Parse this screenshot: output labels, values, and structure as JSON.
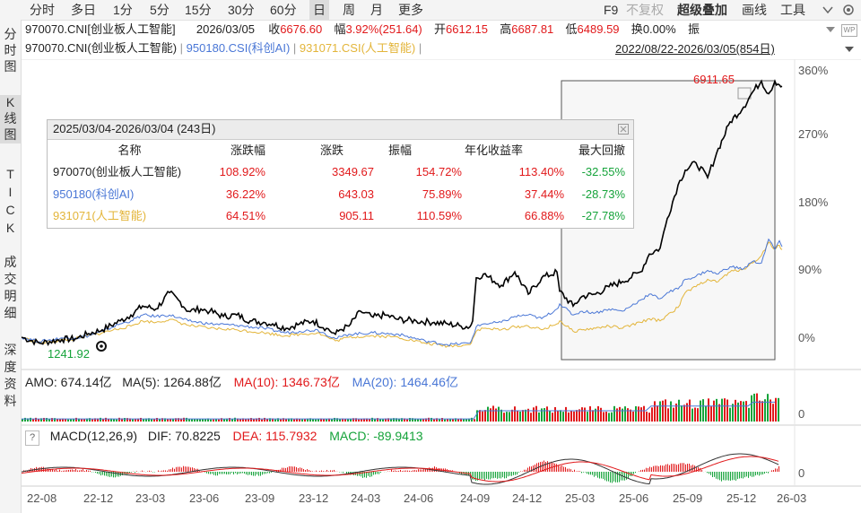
{
  "toolbar": {
    "periods": [
      "分时",
      "多日",
      "1分",
      "5分",
      "15分",
      "30分",
      "60分",
      "日",
      "周",
      "月",
      "更多"
    ],
    "active_period": "日",
    "right": {
      "f9": "F9",
      "fq": "不复权",
      "overlay": "超级叠加",
      "draw": "画线",
      "tools": "工具"
    }
  },
  "leftnav": {
    "items": [
      "分",
      "时",
      "图",
      "K",
      "线",
      "图",
      "T",
      "I",
      "C",
      "K",
      "成",
      "交",
      "明",
      "细",
      "深",
      "度",
      "资",
      "料"
    ]
  },
  "quote": {
    "code": "970070.CNI[创业板人工智能]",
    "date": "2026/03/05",
    "close_label": "收",
    "close": "6676.60",
    "change_label": "幅",
    "change": "3.92%(251.64)",
    "open_label": "开",
    "open": "6612.15",
    "high_label": "高",
    "high": "6687.81",
    "low_label": "低",
    "low": "6489.59",
    "turnover_label": "换",
    "turnover": "0.00%",
    "amp_label": "振"
  },
  "overlay": {
    "main": "970070.CNI(创业板人工智能)",
    "s2": "950180.CSI(科创AI)",
    "s3": "931071.CSI(人工智能)",
    "range": "2022/08/22-2026/03/05(854日)"
  },
  "stats": {
    "title": "2025/03/04-2026/03/04 (243日)",
    "columns": [
      "名称",
      "涨跌幅",
      "涨跌",
      "振幅",
      "年化收益率",
      "最大回撤"
    ],
    "rows": [
      {
        "name": "970070(创业板人工智能)",
        "pct": "108.92%",
        "chg": "3349.67",
        "amp": "154.72%",
        "ann": "113.40%",
        "mdd": "-32.55%"
      },
      {
        "name": "950180(科创AI)",
        "pct": "36.22%",
        "chg": "643.03",
        "amp": "75.89%",
        "ann": "37.44%",
        "mdd": "-28.73%"
      },
      {
        "name": "931071(人工智能)",
        "pct": "64.51%",
        "chg": "905.11",
        "amp": "110.59%",
        "ann": "66.88%",
        "mdd": "-27.78%"
      }
    ]
  },
  "price_chart": {
    "high_label": "6911.65",
    "low_label": "1241.92",
    "y_ticks": [
      "360%",
      "270%",
      "180%",
      "90%",
      "0%"
    ]
  },
  "volume_panel": {
    "amo": "AMO: 674.14亿",
    "ma5": "MA(5): 1264.88亿",
    "ma10": "MA(10): 1346.73亿",
    "ma20": "MA(20): 1464.46亿",
    "zero": "0"
  },
  "macd_panel": {
    "help": "?",
    "label": "MACD(12,26,9)",
    "dif": "DIF: 70.8225",
    "dea": "DEA: 115.7932",
    "macd": "MACD: -89.9413",
    "zero": "0"
  },
  "x_ticks": [
    "22-08",
    "22-12",
    "23-03",
    "23-06",
    "23-09",
    "23-12",
    "24-03",
    "24-06",
    "24-09",
    "24-12",
    "25-03",
    "25-06",
    "25-09",
    "25-12",
    "26-03"
  ],
  "chart_data": {
    "type": "line",
    "x_range": [
      "2022/08/22",
      "2026/03/05"
    ],
    "y_unit": "%",
    "ylim": [
      -5,
      365
    ],
    "y_ticks": [
      0,
      90,
      180,
      270,
      360
    ],
    "series": [
      {
        "name": "970070(创业板人工智能)",
        "color": "#000000",
        "points": [
          [
            0,
            0
          ],
          [
            20,
            -8
          ],
          [
            45,
            -3
          ],
          [
            60,
            -2
          ],
          [
            75,
            5
          ],
          [
            90,
            10
          ],
          [
            110,
            22
          ],
          [
            122,
            30
          ],
          [
            135,
            42
          ],
          [
            150,
            38
          ],
          [
            165,
            60
          ],
          [
            175,
            50
          ],
          [
            186,
            35
          ],
          [
            200,
            38
          ],
          [
            210,
            35
          ],
          [
            225,
            28
          ],
          [
            240,
            30
          ],
          [
            255,
            22
          ],
          [
            270,
            20
          ],
          [
            280,
            18
          ],
          [
            295,
            12
          ],
          [
            310,
            18
          ],
          [
            325,
            22
          ],
          [
            340,
            12
          ],
          [
            350,
            4
          ],
          [
            355,
            10
          ],
          [
            365,
            15
          ],
          [
            378,
            35
          ],
          [
            392,
            27
          ],
          [
            405,
            30
          ],
          [
            420,
            24
          ],
          [
            440,
            22
          ],
          [
            460,
            20
          ],
          [
            475,
            18
          ],
          [
            490,
            15
          ],
          [
            500,
            14
          ],
          [
            503,
            22
          ],
          [
            507,
            80
          ],
          [
            515,
            85
          ],
          [
            535,
            70
          ],
          [
            550,
            88
          ],
          [
            565,
            58
          ],
          [
            580,
            80
          ],
          [
            597,
            88
          ],
          [
            600,
            62
          ],
          [
            615,
            42
          ],
          [
            625,
            55
          ],
          [
            640,
            58
          ],
          [
            655,
            68
          ],
          [
            670,
            75
          ],
          [
            690,
            88
          ],
          [
            700,
            112
          ],
          [
            712,
            120
          ],
          [
            720,
            160
          ],
          [
            732,
            205
          ],
          [
            740,
            225
          ],
          [
            752,
            235
          ],
          [
            765,
            215
          ],
          [
            775,
            248
          ],
          [
            790,
            290
          ],
          [
            805,
            310
          ],
          [
            815,
            330
          ],
          [
            825,
            345
          ],
          [
            833,
            328
          ],
          [
            840,
            345
          ],
          [
            845,
            340
          ],
          [
            848,
            338
          ]
        ]
      },
      {
        "name": "950180(科创AI)",
        "color": "#4a77d6",
        "points": [
          [
            0,
            0
          ],
          [
            20,
            -6
          ],
          [
            45,
            -1
          ],
          [
            60,
            -1
          ],
          [
            75,
            2
          ],
          [
            90,
            8
          ],
          [
            110,
            18
          ],
          [
            122,
            22
          ],
          [
            135,
            30
          ],
          [
            150,
            28
          ],
          [
            165,
            30
          ],
          [
            186,
            22
          ],
          [
            210,
            18
          ],
          [
            240,
            16
          ],
          [
            270,
            12
          ],
          [
            295,
            6
          ],
          [
            310,
            8
          ],
          [
            330,
            10
          ],
          [
            350,
            -2
          ],
          [
            365,
            4
          ],
          [
            392,
            6
          ],
          [
            420,
            4
          ],
          [
            450,
            -5
          ],
          [
            475,
            -10
          ],
          [
            500,
            -8
          ],
          [
            503,
            0
          ],
          [
            507,
            14
          ],
          [
            515,
            18
          ],
          [
            535,
            20
          ],
          [
            550,
            28
          ],
          [
            565,
            30
          ],
          [
            580,
            25
          ],
          [
            597,
            38
          ],
          [
            600,
            45
          ],
          [
            615,
            30
          ],
          [
            625,
            35
          ],
          [
            640,
            33
          ],
          [
            655,
            38
          ],
          [
            670,
            35
          ],
          [
            690,
            50
          ],
          [
            700,
            58
          ],
          [
            712,
            52
          ],
          [
            720,
            60
          ],
          [
            732,
            65
          ],
          [
            740,
            78
          ],
          [
            752,
            82
          ],
          [
            765,
            90
          ],
          [
            775,
            85
          ],
          [
            790,
            95
          ],
          [
            805,
            92
          ],
          [
            815,
            102
          ],
          [
            825,
            100
          ],
          [
            833,
            132
          ],
          [
            840,
            118
          ],
          [
            845,
            130
          ],
          [
            848,
            122
          ]
        ]
      },
      {
        "name": "931071(人工智能)",
        "color": "#e3b53a",
        "points": [
          [
            0,
            0
          ],
          [
            20,
            -8
          ],
          [
            45,
            -4
          ],
          [
            60,
            -2
          ],
          [
            75,
            2
          ],
          [
            90,
            6
          ],
          [
            110,
            12
          ],
          [
            122,
            15
          ],
          [
            135,
            22
          ],
          [
            150,
            20
          ],
          [
            165,
            24
          ],
          [
            186,
            16
          ],
          [
            210,
            12
          ],
          [
            240,
            10
          ],
          [
            270,
            6
          ],
          [
            295,
            2
          ],
          [
            310,
            4
          ],
          [
            330,
            6
          ],
          [
            350,
            -5
          ],
          [
            365,
            0
          ],
          [
            392,
            2
          ],
          [
            420,
            0
          ],
          [
            450,
            -8
          ],
          [
            475,
            -12
          ],
          [
            500,
            -10
          ],
          [
            503,
            -2
          ],
          [
            507,
            8
          ],
          [
            515,
            12
          ],
          [
            535,
            10
          ],
          [
            550,
            14
          ],
          [
            565,
            15
          ],
          [
            580,
            10
          ],
          [
            597,
            18
          ],
          [
            600,
            22
          ],
          [
            615,
            8
          ],
          [
            625,
            10
          ],
          [
            640,
            12
          ],
          [
            655,
            15
          ],
          [
            670,
            12
          ],
          [
            690,
            20
          ],
          [
            700,
            25
          ],
          [
            712,
            22
          ],
          [
            720,
            30
          ],
          [
            732,
            40
          ],
          [
            740,
            60
          ],
          [
            752,
            68
          ],
          [
            765,
            78
          ],
          [
            775,
            74
          ],
          [
            790,
            88
          ],
          [
            805,
            92
          ],
          [
            815,
            100
          ],
          [
            825,
            110
          ],
          [
            833,
            128
          ],
          [
            840,
            118
          ],
          [
            845,
            124
          ],
          [
            848,
            118
          ]
        ]
      }
    ]
  },
  "colors": {
    "up": "#e1191b",
    "down": "#15a33a",
    "main": "#000000",
    "s2": "#4a77d6",
    "s3": "#e3b53a"
  }
}
